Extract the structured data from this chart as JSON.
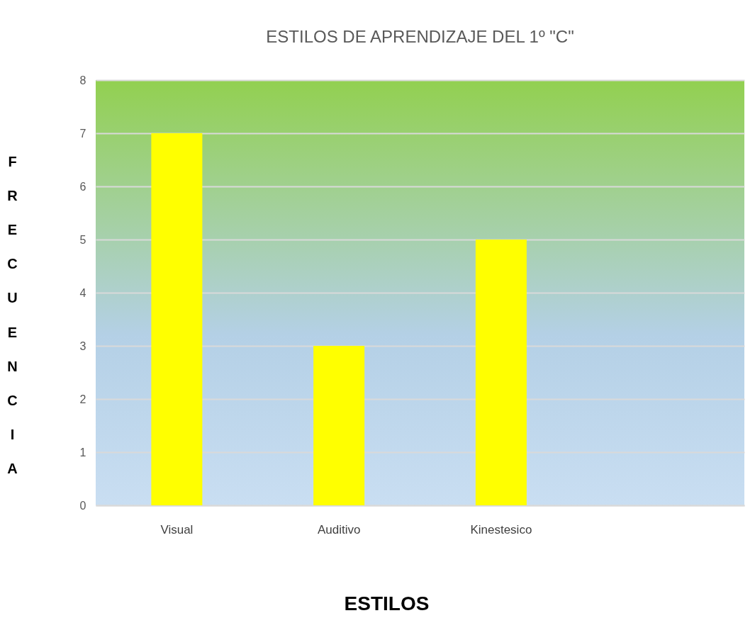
{
  "chart_data": {
    "type": "bar",
    "title": "ESTILOS DE APRENDIZAJE DEL 1º \"C\"",
    "xlabel": "ESTILOS",
    "ylabel": "FRECUENCIA",
    "categories": [
      "Visual",
      "Auditivo",
      "Kinestesico",
      null
    ],
    "values": [
      7,
      3,
      5,
      null
    ],
    "color": "#ffff00",
    "ylim": [
      0,
      8
    ],
    "yticks": [
      0,
      1,
      2,
      3,
      4,
      5,
      6,
      7,
      8
    ],
    "grid": "y"
  }
}
